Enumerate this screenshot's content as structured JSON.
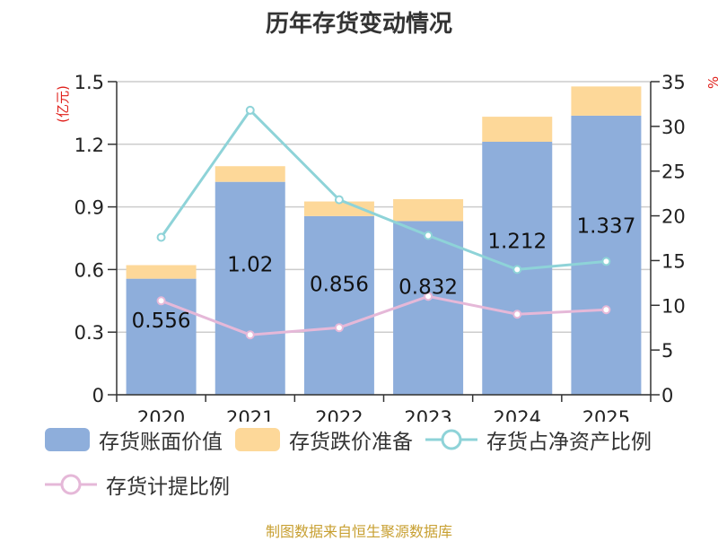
{
  "title": "历年存货变动情况",
  "unit_left": "(亿元)",
  "unit_right": "%",
  "source": "制图数据来自恒生聚源数据库",
  "colors": {
    "book_value": "#8eaedb",
    "reserve": "#fdd899",
    "net_asset_ratio": "#8ed3d8",
    "provision_ratio": "#e5b8d8",
    "grid": "#cccccc",
    "axis": "#333333"
  },
  "legend": [
    {
      "label": "存货账面价值",
      "type": "bar",
      "color_key": "book_value"
    },
    {
      "label": "存货跌价准备",
      "type": "bar",
      "color_key": "reserve"
    },
    {
      "label": "存货占净资产比例",
      "type": "line",
      "color_key": "net_asset_ratio"
    },
    {
      "label": "存货计提比例",
      "type": "line",
      "color_key": "provision_ratio"
    }
  ],
  "chart_data": {
    "type": "bar",
    "title": "历年存货变动情况",
    "categories": [
      "2020",
      "2021",
      "2022",
      "2023",
      "2024",
      "2025"
    ],
    "y_left": {
      "label": "(亿元)",
      "lim": [
        0,
        1.5
      ],
      "ticks": [
        "0",
        "0.3",
        "0.6",
        "0.9",
        "1.2",
        "1.5"
      ]
    },
    "y_right": {
      "label": "%",
      "lim": [
        0,
        35
      ],
      "ticks": [
        "0",
        "5",
        "10",
        "15",
        "20",
        "25",
        "30",
        "35"
      ]
    },
    "stacked": true,
    "series": [
      {
        "name": "存货账面价值",
        "axis": "left",
        "kind": "bar",
        "values": [
          0.556,
          1.02,
          0.856,
          0.832,
          1.212,
          1.337
        ],
        "labels": [
          "0.556",
          "1.02",
          "0.856",
          "0.832",
          "1.212",
          "1.337"
        ]
      },
      {
        "name": "存货跌价准备",
        "axis": "left",
        "kind": "bar",
        "values": [
          0.065,
          0.075,
          0.07,
          0.105,
          0.12,
          0.14
        ]
      },
      {
        "name": "存货占净资产比例",
        "axis": "right",
        "kind": "line",
        "values": [
          17.6,
          31.8,
          21.8,
          17.8,
          14.0,
          14.9
        ]
      },
      {
        "name": "存货计提比例",
        "axis": "right",
        "kind": "line",
        "values": [
          10.5,
          6.7,
          7.5,
          11.0,
          9.0,
          9.5
        ]
      }
    ]
  }
}
